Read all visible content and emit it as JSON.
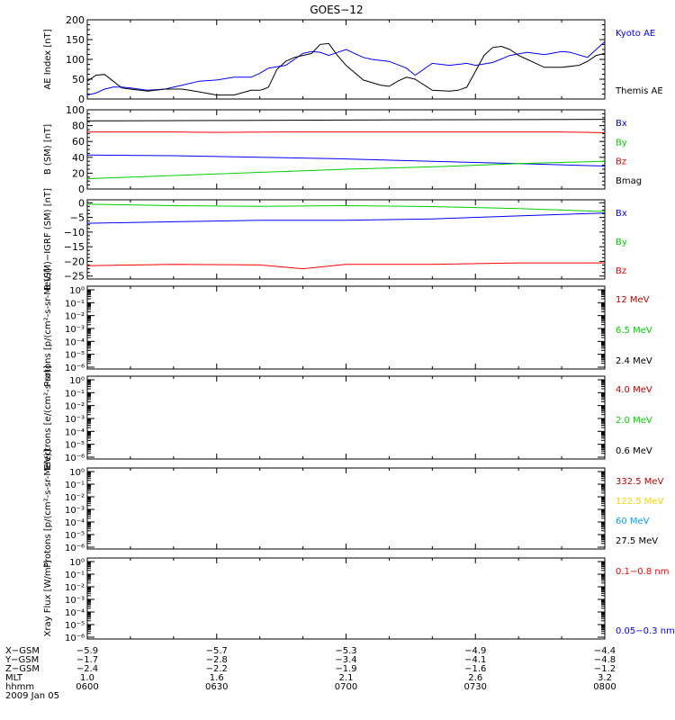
{
  "title": "GOES−12",
  "colors": {
    "black": "#000000",
    "blue": "#0000ff",
    "red": "#ff0000",
    "darkred": "#c00000",
    "green": "#00d000",
    "yellow": "#ffd200",
    "cyan": "#00a0ff"
  },
  "ephemeris": {
    "rows": [
      {
        "label": "X−GSM",
        "values": [
          "−5.9",
          "−5.7",
          "−5.3",
          "−4.9",
          "−4.4"
        ]
      },
      {
        "label": "Y−GSM",
        "values": [
          "−1.7",
          "−2.8",
          "−3.4",
          "−4.1",
          "−4.8"
        ]
      },
      {
        "label": "Z−GSM",
        "values": [
          "−2.4",
          "−2.2",
          "−1.9",
          "−1.6",
          "−1.2"
        ]
      },
      {
        "label": "MLT",
        "values": [
          "1.0",
          "1.6",
          "2.1",
          "2.6",
          "3.2"
        ]
      },
      {
        "label": "hhmm",
        "values": [
          "0600",
          "0630",
          "0700",
          "0730",
          "0800"
        ]
      }
    ],
    "date": "2009 Jan 05"
  },
  "chart_data": [
    {
      "type": "line",
      "ylabel": "AE Index [nT]",
      "ylim": [
        0,
        200
      ],
      "yticks": [
        0,
        50,
        100,
        150,
        200
      ],
      "x_minutes": [
        0,
        120
      ],
      "legend": [
        {
          "name": "Kyoto AE",
          "color": "blue"
        },
        {
          "name": "Themis AE",
          "color": "black"
        }
      ],
      "series": [
        {
          "name": "Kyoto AE",
          "color": "blue",
          "x": [
            0,
            2,
            4,
            6,
            8,
            10,
            14,
            18,
            22,
            26,
            30,
            34,
            38,
            40,
            42,
            46,
            50,
            52,
            54,
            56,
            60,
            64,
            66,
            70,
            74,
            76,
            80,
            84,
            88,
            90,
            94,
            98,
            102,
            106,
            110,
            112,
            116,
            118,
            120
          ],
          "y": [
            10,
            15,
            25,
            30,
            30,
            28,
            22,
            25,
            35,
            45,
            48,
            55,
            55,
            65,
            78,
            85,
            115,
            120,
            118,
            110,
            125,
            105,
            100,
            95,
            78,
            60,
            90,
            85,
            90,
            85,
            92,
            110,
            118,
            112,
            120,
            118,
            105,
            125,
            145
          ]
        },
        {
          "name": "Themis AE",
          "color": "black",
          "x": [
            0,
            2,
            4,
            6,
            8,
            10,
            14,
            18,
            22,
            26,
            30,
            34,
            38,
            40,
            41,
            42,
            44,
            46,
            48,
            50,
            52,
            54,
            56,
            58,
            60,
            64,
            68,
            70,
            72,
            74,
            76,
            80,
            84,
            86,
            88,
            90,
            92,
            94,
            96,
            98,
            100,
            102,
            104,
            106,
            110,
            114,
            116,
            118,
            120
          ],
          "y": [
            45,
            60,
            62,
            45,
            28,
            25,
            20,
            25,
            25,
            18,
            10,
            10,
            22,
            22,
            25,
            30,
            75,
            95,
            105,
            110,
            115,
            138,
            140,
            110,
            85,
            48,
            35,
            32,
            45,
            55,
            50,
            22,
            20,
            22,
            30,
            70,
            110,
            130,
            133,
            125,
            110,
            100,
            90,
            80,
            80,
            85,
            95,
            110,
            115
          ]
        }
      ]
    },
    {
      "type": "line",
      "ylabel": "B (SM) [nT]",
      "ylim": [
        0,
        100
      ],
      "yticks": [
        0,
        20,
        40,
        60,
        80,
        100
      ],
      "legend": [
        {
          "name": "Bx",
          "color": "blue"
        },
        {
          "name": "By",
          "color": "green"
        },
        {
          "name": "Bz",
          "color": "red"
        },
        {
          "name": "Bmag",
          "color": "black"
        }
      ],
      "series": [
        {
          "name": "Bmag",
          "color": "black",
          "x": [
            0,
            30,
            60,
            90,
            120
          ],
          "y": [
            86,
            86.5,
            87,
            87.5,
            88
          ]
        },
        {
          "name": "Bz",
          "color": "red",
          "x": [
            0,
            20,
            30,
            45,
            60,
            90,
            110,
            120
          ],
          "y": [
            72,
            72,
            71.5,
            72,
            72,
            72,
            72,
            71
          ]
        },
        {
          "name": "Bx",
          "color": "blue",
          "x": [
            0,
            20,
            40,
            60,
            80,
            100,
            120
          ],
          "y": [
            43,
            42,
            40,
            38,
            35,
            32,
            29
          ]
        },
        {
          "name": "By",
          "color": "green",
          "x": [
            0,
            20,
            40,
            60,
            80,
            100,
            120
          ],
          "y": [
            13,
            17,
            21,
            25,
            28,
            32,
            35
          ]
        }
      ]
    },
    {
      "type": "line",
      "ylabel": "B (SM)−IGRF (SM) [nT]",
      "ylim": [
        -26,
        1
      ],
      "yticks": [
        0,
        -5,
        -10,
        -15,
        -20,
        -25
      ],
      "legend": [
        {
          "name": "Bx",
          "color": "blue"
        },
        {
          "name": "By",
          "color": "green"
        },
        {
          "name": "Bz",
          "color": "red"
        }
      ],
      "series": [
        {
          "name": "By",
          "color": "green",
          "x": [
            0,
            20,
            40,
            60,
            80,
            100,
            120
          ],
          "y": [
            -0.5,
            -1,
            -1.2,
            -1,
            -1.3,
            -2,
            -3
          ]
        },
        {
          "name": "Bx",
          "color": "blue",
          "x": [
            0,
            20,
            40,
            60,
            80,
            100,
            120
          ],
          "y": [
            -7,
            -6.5,
            -6,
            -6,
            -5.5,
            -4.5,
            -3.5
          ]
        },
        {
          "name": "Bz",
          "color": "red",
          "x": [
            0,
            20,
            40,
            50,
            60,
            80,
            100,
            120
          ],
          "y": [
            -21.5,
            -21,
            -21.2,
            -22.5,
            -21,
            -21,
            -20.5,
            -20.5
          ]
        }
      ]
    },
    {
      "type": "line",
      "ylabel": "Protons [p/(cm²-s-sr-MeV)]",
      "scale": "log",
      "ylim_exp": [
        -6,
        0
      ],
      "legend": [
        {
          "name": "12 MeV",
          "color": "darkred"
        },
        {
          "name": "6.5 MeV",
          "color": "green"
        },
        {
          "name": "2.4 MeV",
          "color": "black"
        }
      ]
    },
    {
      "type": "line",
      "ylabel": "Electrons [e/(cm²-s-sr)]",
      "scale": "log",
      "ylim_exp": [
        -6,
        0
      ],
      "legend": [
        {
          "name": "4.0 MeV",
          "color": "darkred"
        },
        {
          "name": "2.0 MeV",
          "color": "green"
        },
        {
          "name": "0.6 MeV",
          "color": "black"
        }
      ]
    },
    {
      "type": "line",
      "ylabel": "Protons [p/(cm²-s-sr-MeV)]",
      "scale": "log",
      "ylim_exp": [
        -6,
        0
      ],
      "legend": [
        {
          "name": "332.5 MeV",
          "color": "darkred"
        },
        {
          "name": "122.5 MeV",
          "color": "yellow"
        },
        {
          "name": "60 MeV",
          "color": "cyan"
        },
        {
          "name": "27.5 MeV",
          "color": "black"
        }
      ]
    },
    {
      "type": "line",
      "ylabel": "Xray Flux [W/m²]",
      "scale": "log",
      "ylim_exp": [
        -6,
        0
      ],
      "legend": [
        {
          "name": "0.1−0.8 nm",
          "color": "red"
        },
        {
          "name": "0.05−0.3 nm",
          "color": "blue"
        }
      ]
    }
  ]
}
